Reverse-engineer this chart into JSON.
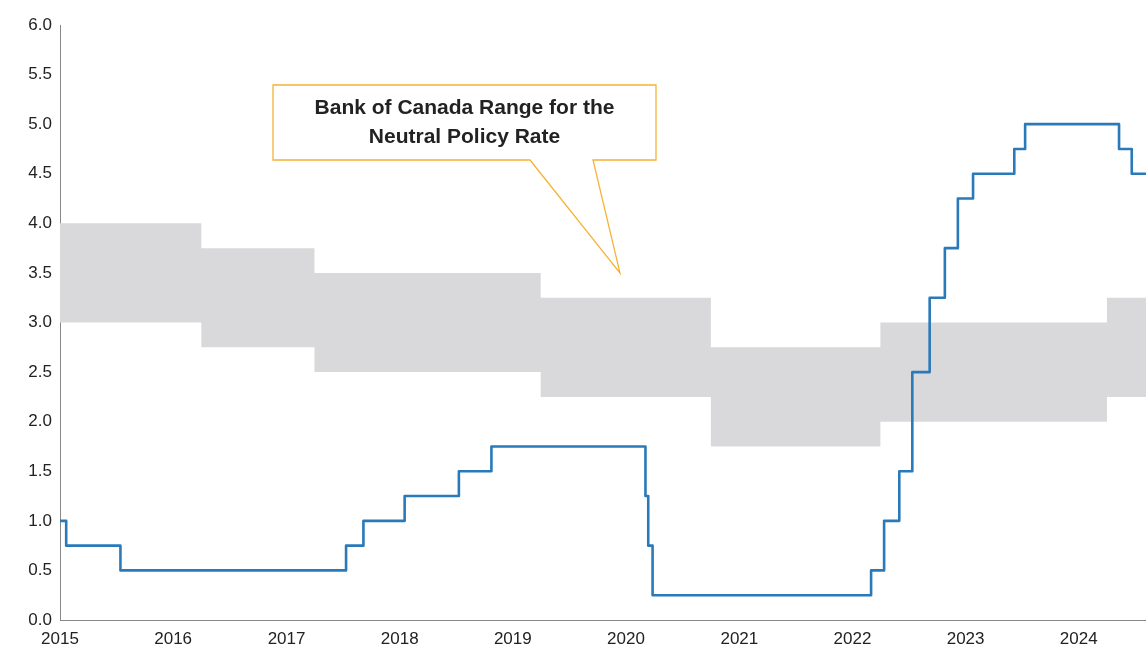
{
  "chart_data": {
    "type": "line",
    "xlim": [
      "2015-01-01",
      "2024-08-05"
    ],
    "xticks": [
      "2015",
      "2016",
      "2017",
      "2018",
      "2019",
      "2020",
      "2021",
      "2022",
      "2023",
      "2024"
    ],
    "ylim": [
      0,
      6
    ],
    "yticks": [
      {
        "value": 0,
        "label": "0.0"
      },
      {
        "value": 0.5,
        "label": "0.5"
      },
      {
        "value": 1,
        "label": "1.0"
      },
      {
        "value": 1.5,
        "label": "1.5"
      },
      {
        "value": 2,
        "label": "2.0"
      },
      {
        "value": 2.5,
        "label": "2.5"
      },
      {
        "value": 3,
        "label": "3.0"
      },
      {
        "value": 3.5,
        "label": "3.5"
      },
      {
        "value": 4,
        "label": "4.0"
      },
      {
        "value": 4.5,
        "label": "4.5"
      },
      {
        "value": 5,
        "label": "5.0"
      },
      {
        "value": 5.5,
        "label": "5.5"
      },
      {
        "value": 6,
        "label": "6.0"
      }
    ],
    "grid": false,
    "legend": false,
    "series": [
      {
        "type": "area",
        "color": "#d9d9db",
        "x": [
          "2015-01-01",
          "2016-04-01",
          "2016-04-01",
          "2017-04-01",
          "2017-04-01",
          "2019-04-01",
          "2019-04-01",
          "2020-10-01",
          "2020-10-01",
          "2022-04-01",
          "2022-04-01",
          "2024-04-01",
          "2024-04-01",
          "2024-08-05"
        ],
        "values": [
          null,
          null,
          null,
          null,
          null,
          null,
          null,
          null,
          null,
          null,
          null,
          null,
          null,
          null
        ],
        "lower": [
          3,
          3,
          2.75,
          2.75,
          2.5,
          2.5,
          2.25,
          2.25,
          1.75,
          1.75,
          2,
          2,
          2.25,
          2.25
        ],
        "upper": [
          4,
          4,
          3.75,
          3.75,
          3.5,
          3.5,
          3.25,
          3.25,
          2.75,
          2.75,
          3,
          3,
          3.25,
          3.25
        ]
      },
      {
        "color": "#2a7ab9",
        "x": [
          "2015-01-01",
          "2015-01-21",
          "2015-01-21",
          "2015-07-15",
          "2015-07-15",
          "2017-07-12",
          "2017-07-12",
          "2017-09-06",
          "2017-09-06",
          "2018-01-17",
          "2018-01-17",
          "2018-07-11",
          "2018-07-11",
          "2018-10-24",
          "2018-10-24",
          "2020-03-04",
          "2020-03-04",
          "2020-03-13",
          "2020-03-13",
          "2020-03-27",
          "2020-03-27",
          "2022-03-02",
          "2022-03-02",
          "2022-04-13",
          "2022-04-13",
          "2022-06-01",
          "2022-06-01",
          "2022-07-13",
          "2022-07-13",
          "2022-09-07",
          "2022-09-07",
          "2022-10-26",
          "2022-10-26",
          "2022-12-07",
          "2022-12-07",
          "2023-01-25",
          "2023-01-25",
          "2023-06-07",
          "2023-06-07",
          "2023-07-12",
          "2023-07-12",
          "2024-05-10",
          "2024-05-10",
          "2024-06-20",
          "2024-06-20",
          "2024-08-05"
        ],
        "values": [
          1,
          1,
          0.75,
          0.75,
          0.5,
          0.5,
          0.75,
          0.75,
          1,
          1,
          1.25,
          1.25,
          1.5,
          1.5,
          1.75,
          1.75,
          1.25,
          1.25,
          0.75,
          0.75,
          0.25,
          0.25,
          0.5,
          0.5,
          1,
          1,
          1.5,
          1.5,
          2.5,
          2.5,
          3.25,
          3.25,
          3.75,
          3.75,
          4.25,
          4.25,
          4.5,
          4.5,
          4.75,
          4.75,
          5,
          5,
          4.75,
          4.75,
          4.5,
          4.5
        ]
      }
    ],
    "annotations": [
      "Bank of Canada Range for the Neutral Policy Rate"
    ]
  }
}
